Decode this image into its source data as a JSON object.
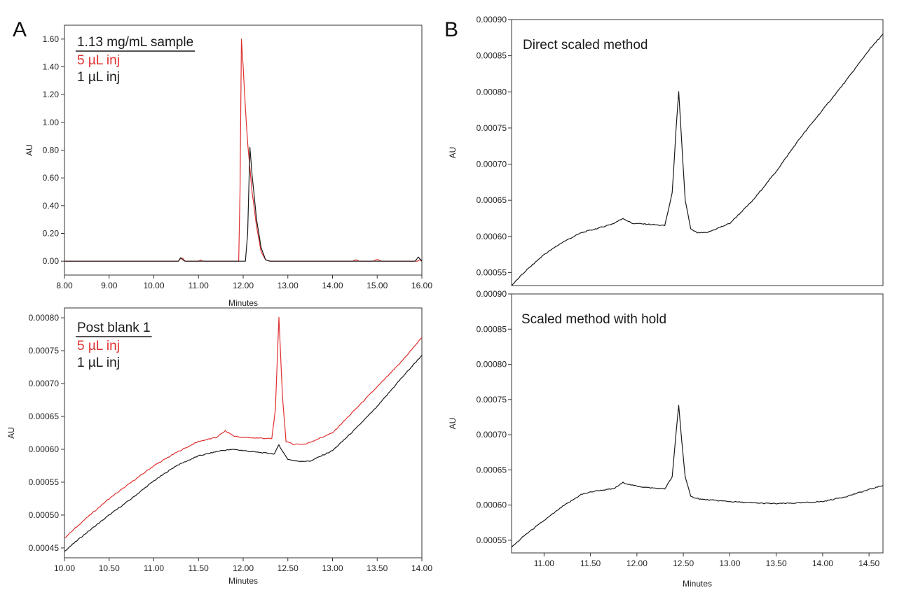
{
  "colors": {
    "trace_black": "#1a1a1a",
    "trace_red": "#e03030",
    "axis": "#333333"
  },
  "figure": {
    "panel_a_letter": "A",
    "panel_b_letter": "B"
  },
  "chart_data": [
    {
      "id": "A-top",
      "type": "line",
      "title": "",
      "xlabel": "Minutes",
      "ylabel": "AU",
      "xlim": [
        8.0,
        16.0
      ],
      "ylim": [
        -0.1,
        1.7
      ],
      "x_ticks": [
        "8.00",
        "9.00",
        "10.00",
        "11.00",
        "12.00",
        "13.00",
        "14.00",
        "15.00",
        "16.00"
      ],
      "y_ticks": [
        "0.00",
        "0.20",
        "0.40",
        "0.60",
        "0.80",
        "1.00",
        "1.20",
        "1.40",
        "1.60"
      ],
      "legend": {
        "heading": "1.13 mg/mL sample",
        "underlined": true,
        "position": "top-left"
      },
      "series": [
        {
          "name": "5 µL inj",
          "color": "#e03030",
          "x": [
            8.0,
            10.55,
            10.6,
            10.65,
            10.7,
            11.0,
            11.05,
            11.1,
            11.9,
            11.93,
            11.96,
            12.0,
            12.05,
            12.1,
            12.2,
            12.3,
            12.4,
            12.5,
            12.6,
            14.45,
            14.52,
            14.6,
            14.9,
            15.0,
            15.1,
            15.2,
            15.9,
            15.95,
            16.0
          ],
          "y": [
            0.0,
            0.0,
            0.02,
            0.02,
            0.0,
            0.0,
            0.008,
            0.0,
            0.0,
            0.5,
            1.6,
            1.4,
            1.1,
            0.85,
            0.5,
            0.25,
            0.07,
            0.01,
            0.0,
            0.0,
            0.01,
            0.0,
            0.0,
            0.012,
            0.0,
            0.0,
            0.0,
            0.01,
            0.0
          ]
        },
        {
          "name": "1 µL inj",
          "color": "#1a1a1a",
          "x": [
            8.0,
            10.55,
            10.6,
            10.65,
            10.7,
            12.05,
            12.1,
            12.15,
            12.2,
            12.3,
            12.4,
            12.5,
            12.6,
            15.85,
            15.92,
            16.0
          ],
          "y": [
            0.0,
            0.0,
            0.025,
            0.01,
            0.0,
            0.0,
            0.2,
            0.82,
            0.62,
            0.3,
            0.1,
            0.01,
            0.0,
            0.0,
            0.03,
            0.0
          ]
        }
      ]
    },
    {
      "id": "A-bottom",
      "type": "line",
      "title": "",
      "xlabel": "Minutes",
      "ylabel": "AU",
      "xlim": [
        10.0,
        14.0
      ],
      "ylim": [
        0.000435,
        0.000815
      ],
      "x_ticks": [
        "10.00",
        "10.50",
        "11.00",
        "11.50",
        "12.00",
        "12.50",
        "13.00",
        "13.50",
        "14.00"
      ],
      "y_ticks": [
        "0.00045",
        "0.00050",
        "0.00055",
        "0.00060",
        "0.00065",
        "0.00070",
        "0.00075",
        "0.00080"
      ],
      "legend": {
        "heading": "Post blank 1",
        "underlined": true,
        "position": "top-left"
      },
      "series": [
        {
          "name": "5 µL inj",
          "color": "#e03030",
          "x": [
            10.0,
            10.2,
            10.5,
            10.75,
            11.0,
            11.25,
            11.5,
            11.7,
            11.8,
            11.9,
            12.0,
            12.2,
            12.32,
            12.36,
            12.4,
            12.44,
            12.48,
            12.55,
            12.7,
            13.0,
            13.25,
            13.5,
            13.75,
            14.0
          ],
          "y": [
            0.000465,
            0.00049,
            0.000525,
            0.00055,
            0.000575,
            0.000595,
            0.000612,
            0.000618,
            0.000628,
            0.00062,
            0.000618,
            0.000617,
            0.000616,
            0.00066,
            0.0008,
            0.00068,
            0.000612,
            0.000608,
            0.000608,
            0.000625,
            0.00066,
            0.000695,
            0.00073,
            0.00077
          ]
        },
        {
          "name": "1 µL inj",
          "color": "#1a1a1a",
          "x": [
            10.0,
            10.2,
            10.5,
            10.75,
            11.0,
            11.25,
            11.5,
            11.75,
            11.9,
            12.0,
            12.2,
            12.35,
            12.4,
            12.45,
            12.5,
            12.6,
            12.75,
            13.0,
            13.25,
            13.5,
            13.75,
            14.0
          ],
          "y": [
            0.000445,
            0.000468,
            0.0005,
            0.000525,
            0.000552,
            0.000575,
            0.00059,
            0.000598,
            0.0006,
            0.000598,
            0.000595,
            0.000593,
            0.000607,
            0.000595,
            0.000585,
            0.000582,
            0.000582,
            0.000598,
            0.00063,
            0.000665,
            0.000705,
            0.000743
          ]
        }
      ]
    },
    {
      "id": "B-top",
      "type": "line",
      "title": "Direct scaled method",
      "xlabel": "",
      "ylabel": "AU",
      "xlim": [
        10.65,
        14.65
      ],
      "ylim": [
        0.000532,
        0.0009
      ],
      "x_ticks": [],
      "y_ticks": [
        "0.00055",
        "0.00060",
        "0.00065",
        "0.00070",
        "0.00075",
        "0.00080",
        "0.00085",
        "0.00090"
      ],
      "series": [
        {
          "name": "",
          "color": "#1a1a1a",
          "x": [
            10.65,
            10.8,
            11.0,
            11.2,
            11.4,
            11.6,
            11.75,
            11.85,
            11.95,
            12.1,
            12.3,
            12.38,
            12.42,
            12.45,
            12.48,
            12.52,
            12.58,
            12.65,
            12.75,
            13.0,
            13.25,
            13.5,
            13.75,
            14.0,
            14.25,
            14.5,
            14.65
          ],
          "y": [
            0.000532,
            0.000552,
            0.000575,
            0.000592,
            0.000605,
            0.000612,
            0.000618,
            0.000625,
            0.000618,
            0.000617,
            0.000615,
            0.00066,
            0.000745,
            0.0008,
            0.000735,
            0.00065,
            0.00061,
            0.000605,
            0.000605,
            0.000618,
            0.00065,
            0.00069,
            0.000735,
            0.000775,
            0.000815,
            0.000858,
            0.00088
          ]
        }
      ]
    },
    {
      "id": "B-bottom",
      "type": "line",
      "title": "Scaled method with hold",
      "xlabel": "Minutes",
      "ylabel": "AU",
      "xlim": [
        10.65,
        14.65
      ],
      "ylim": [
        0.000532,
        0.0009
      ],
      "x_ticks": [
        "11.00",
        "11.50",
        "12.00",
        "12.50",
        "13.00",
        "13.50",
        "14.00",
        "14.50"
      ],
      "y_ticks": [
        "0.00055",
        "0.00060",
        "0.00065",
        "0.00070",
        "0.00075",
        "0.00080",
        "0.00085",
        "0.00090"
      ],
      "series": [
        {
          "name": "",
          "color": "#1a1a1a",
          "x": [
            10.65,
            10.8,
            11.0,
            11.2,
            11.4,
            11.55,
            11.75,
            11.85,
            11.95,
            12.1,
            12.3,
            12.38,
            12.42,
            12.45,
            12.48,
            12.52,
            12.58,
            12.7,
            13.0,
            13.25,
            13.5,
            13.75,
            14.0,
            14.25,
            14.5,
            14.65
          ],
          "y": [
            0.00054,
            0.000558,
            0.000578,
            0.000598,
            0.000615,
            0.00062,
            0.000623,
            0.000632,
            0.000628,
            0.000625,
            0.000623,
            0.00064,
            0.0007,
            0.000742,
            0.000695,
            0.00064,
            0.000612,
            0.000608,
            0.000605,
            0.000603,
            0.000602,
            0.000603,
            0.000605,
            0.000612,
            0.000622,
            0.000628
          ]
        }
      ]
    }
  ]
}
